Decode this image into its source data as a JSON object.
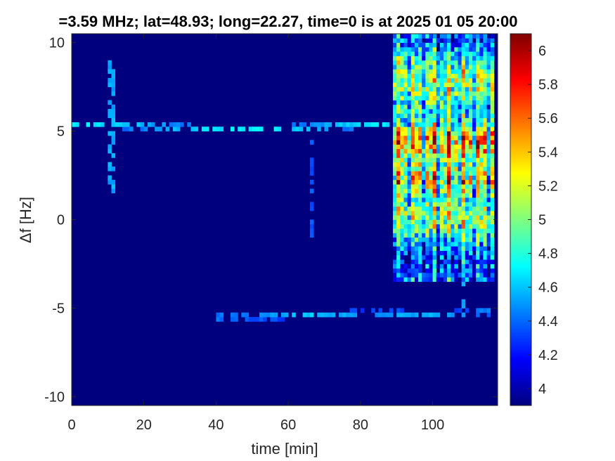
{
  "chart_data": {
    "type": "heatmap",
    "title": "=3.59 MHz;  lat=48.93; long=22.27, time=0 is at 2025 01 05 20:00",
    "xlabel": "time [min]",
    "ylabel": "Δf [Hz]",
    "xlim": [
      0,
      118
    ],
    "ylim": [
      -10.5,
      10.5
    ],
    "xticks": [
      0,
      20,
      40,
      60,
      80,
      100
    ],
    "yticks": [
      -10,
      -5,
      0,
      5,
      10
    ],
    "colorbar": {
      "range": [
        3.9,
        6.1
      ],
      "ticks": [
        4,
        4.2,
        4.4,
        4.6,
        4.8,
        5,
        5.2,
        5.4,
        5.6,
        5.8,
        6
      ],
      "colormap": "jet"
    },
    "background_value": 3.95,
    "features": [
      {
        "kind": "carrier-line",
        "x": [
          0,
          18,
          30,
          42,
          55,
          65,
          75,
          84,
          88
        ],
        "y": [
          5.4,
          5.3,
          5.2,
          5.1,
          5.15,
          5.2,
          5.3,
          5.35,
          5.35
        ],
        "value": 4.6
      },
      {
        "kind": "carrier-line",
        "x": [
          40,
          55,
          70,
          85,
          100,
          108,
          118
        ],
        "y": [
          -5.5,
          -5.45,
          -5.35,
          -5.3,
          -5.35,
          -5.3,
          -5.2
        ],
        "value": 4.5
      },
      {
        "kind": "vertical-streak",
        "x": 11,
        "y": [
          1.5,
          9
        ],
        "value": 4.6
      },
      {
        "kind": "vertical-streak",
        "x": 66.5,
        "y": [
          -1,
          4.5
        ],
        "value": 4.4
      },
      {
        "kind": "vertical-streak",
        "x": 108.5,
        "y": [
          -5.3,
          -0.5
        ],
        "value": 4.6
      },
      {
        "kind": "burst-region",
        "x": [
          89,
          117
        ],
        "y": [
          -3.5,
          10.5
        ],
        "peak_rows": [
          2.2,
          4.6
        ],
        "peak_value": 5.9
      }
    ]
  }
}
